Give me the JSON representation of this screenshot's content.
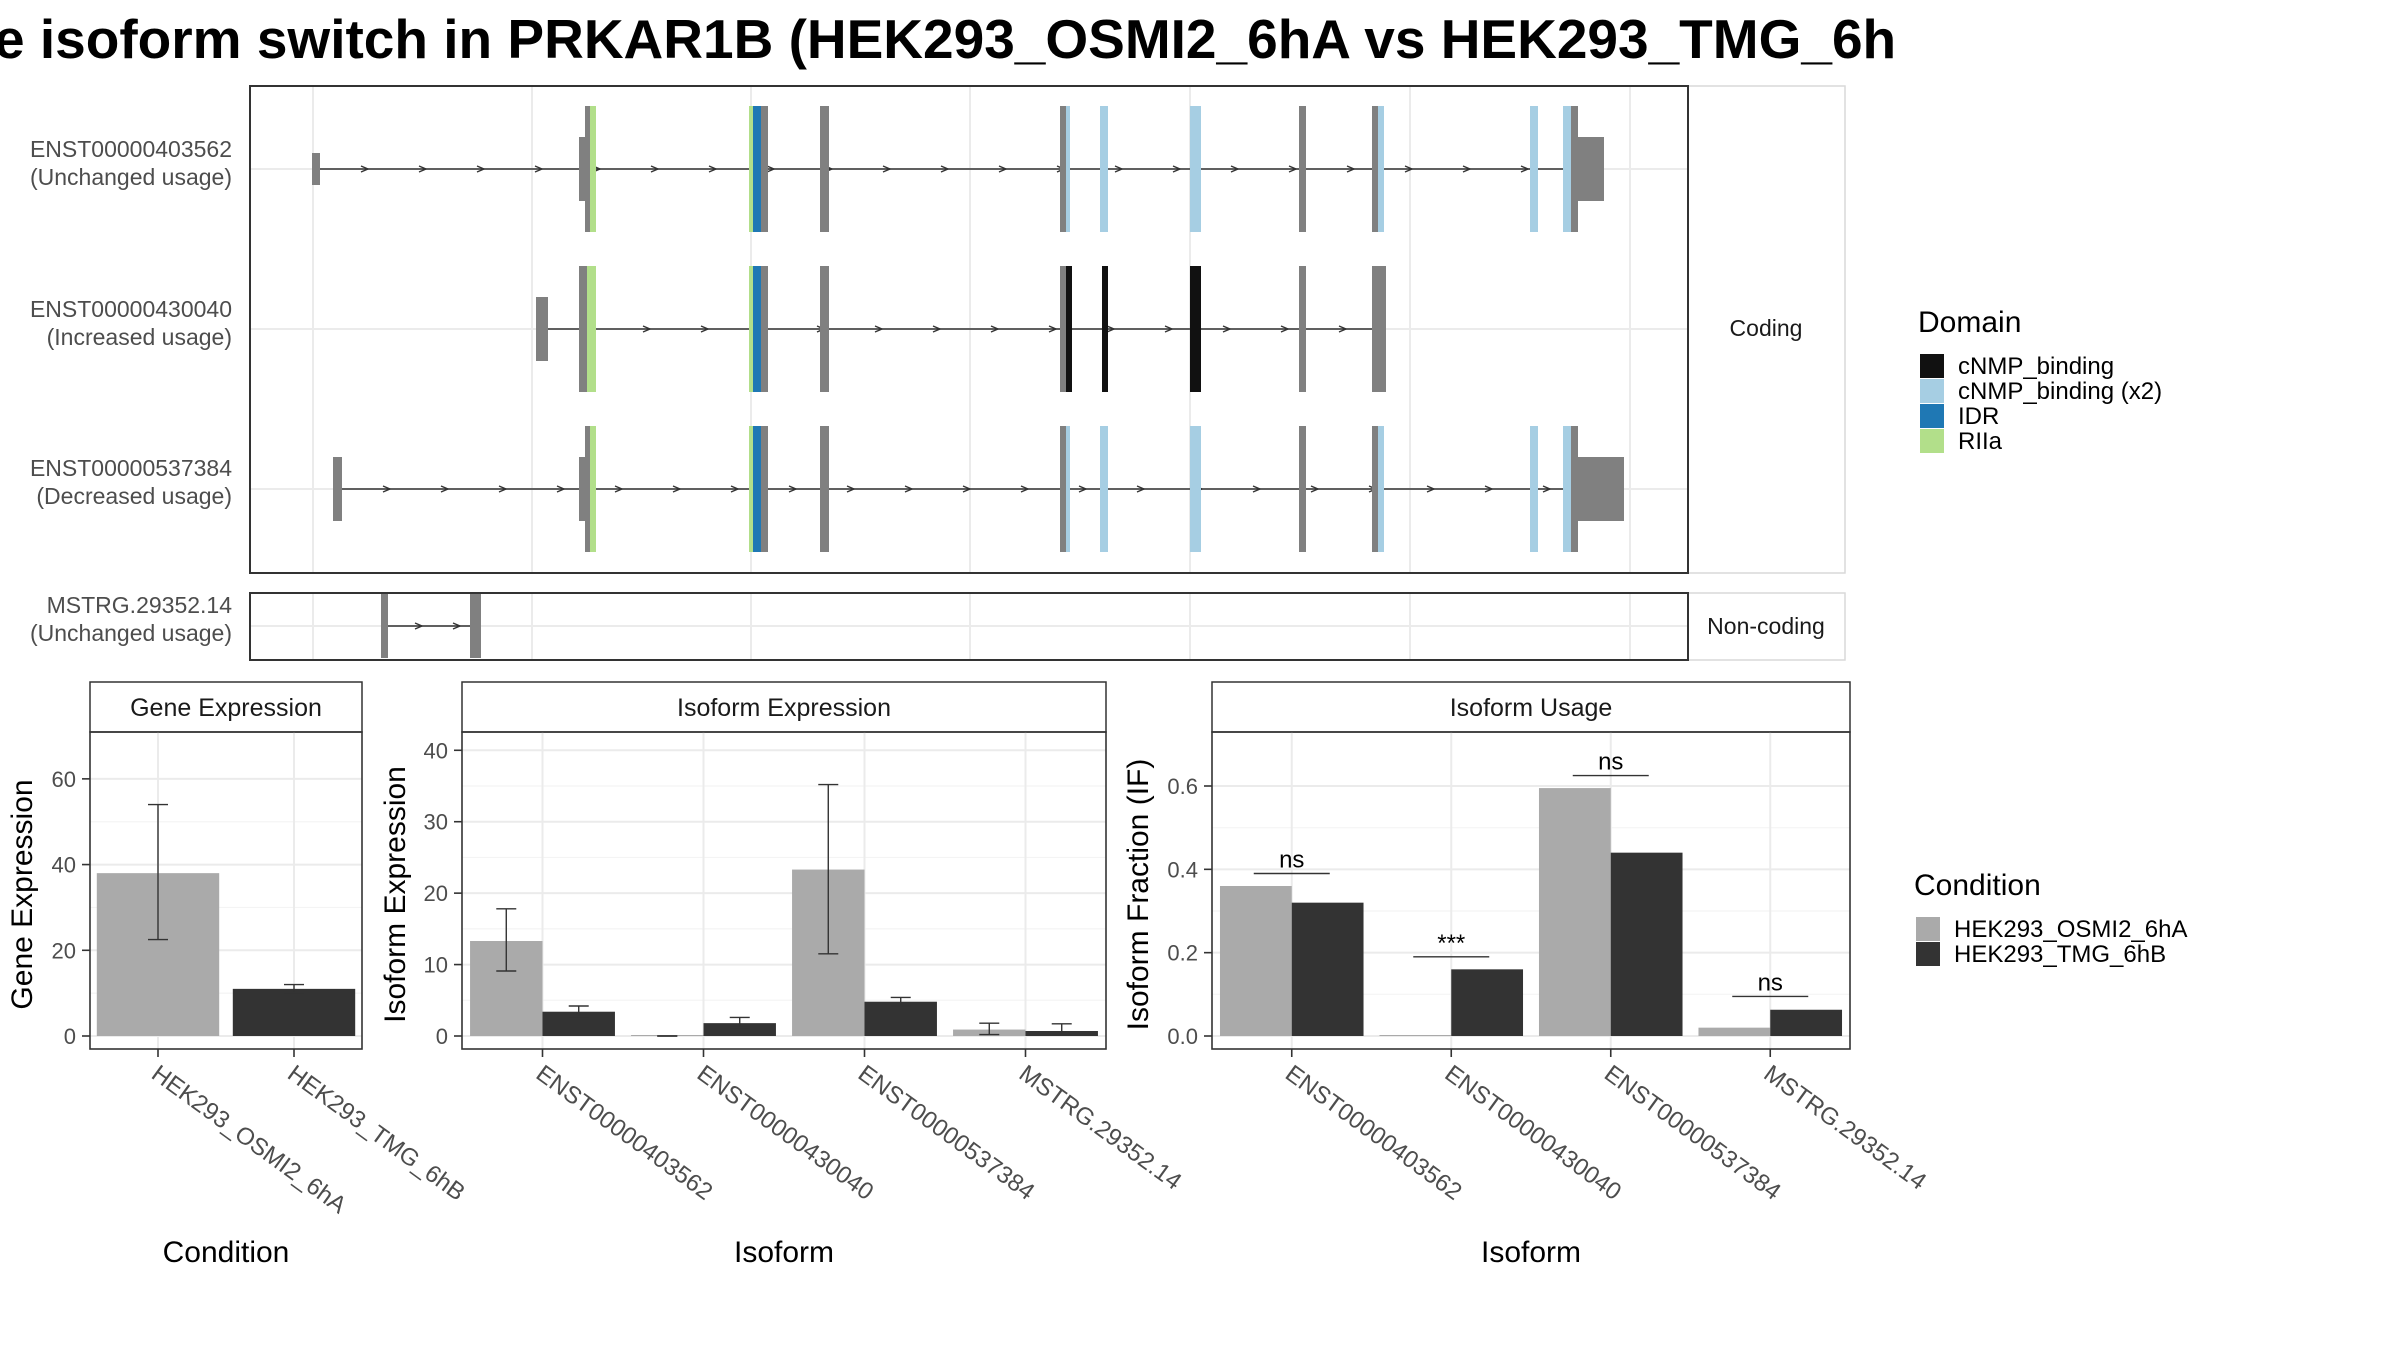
{
  "title": "e isoform switch in PRKAR1B (HEK293_OSMI2_6hA vs HEK293_TMG_6h",
  "colors": {
    "cond_a": "#aaaaaa",
    "cond_b": "#333333",
    "exon": "#808080",
    "domains": {
      "cNMP_binding": "#111111",
      "cNMP_binding (x2)": "#a6cee3",
      "IDR": "#1f78b4",
      "RIIa": "#b2df8a"
    }
  },
  "structure": {
    "facets": [
      "Coding",
      "Non-coding"
    ],
    "transcripts": [
      {
        "id": "ENST00000403562",
        "usage": "(Unchanged usage)",
        "facet": "Coding"
      },
      {
        "id": "ENST00000430040",
        "usage": "(Increased usage)",
        "facet": "Coding"
      },
      {
        "id": "ENST00000537384",
        "usage": "(Decreased usage)",
        "facet": "Coding"
      },
      {
        "id": "MSTRG.29352.14",
        "usage": "(Unchanged usage)",
        "facet": "Non-coding"
      }
    ]
  },
  "legend_domain": {
    "title": "Domain",
    "items": [
      {
        "label": "cNMP_binding",
        "key": "cNMP_binding"
      },
      {
        "label": "cNMP_binding (x2)",
        "key": "cNMP_binding (x2)"
      },
      {
        "label": "IDR",
        "key": "IDR"
      },
      {
        "label": "RIIa",
        "key": "RIIa"
      }
    ]
  },
  "legend_condition": {
    "title": "Condition",
    "items": [
      "HEK293_OSMI2_6hA",
      "HEK293_TMG_6hB"
    ]
  },
  "chart_data": [
    {
      "type": "bar",
      "title": "Gene Expression",
      "xlabel": "Condition",
      "ylabel": "Gene Expression",
      "ylim": [
        0,
        70
      ],
      "yticks": [
        0,
        20,
        40,
        60
      ],
      "categories": [
        "HEK293_OSMI2_6hA",
        "HEK293_TMG_6hB"
      ],
      "series": [
        {
          "name": "HEK293_OSMI2_6hA",
          "values": [
            38.0,
            null
          ],
          "err_low": [
            22.5,
            null
          ],
          "err_high": [
            54.0,
            null
          ]
        },
        {
          "name": "HEK293_TMG_6hB",
          "values": [
            null,
            11.0
          ],
          "err_low": [
            null,
            10.0
          ],
          "err_high": [
            null,
            12.0
          ]
        }
      ]
    },
    {
      "type": "bar",
      "title": "Isoform Expression",
      "xlabel": "Isoform",
      "ylabel": "Isoform Expression",
      "ylim": [
        0,
        42
      ],
      "yticks": [
        0,
        10,
        20,
        30,
        40
      ],
      "categories": [
        "ENST00000403562",
        "ENST00000430040",
        "ENST00000537384",
        "MSTRG.29352.14"
      ],
      "series": [
        {
          "name": "HEK293_OSMI2_6hA",
          "values": [
            13.3,
            0.0,
            23.3,
            0.9
          ],
          "err_low": [
            9.1,
            0.0,
            11.5,
            0.2
          ],
          "err_high": [
            17.8,
            0.0,
            35.2,
            1.8
          ]
        },
        {
          "name": "HEK293_TMG_6hB",
          "values": [
            3.4,
            1.8,
            4.8,
            0.7
          ],
          "err_low": [
            2.7,
            1.2,
            4.2,
            0.1
          ],
          "err_high": [
            4.2,
            2.6,
            5.4,
            1.7
          ]
        }
      ]
    },
    {
      "type": "bar",
      "title": "Isoform Usage",
      "xlabel": "Isoform",
      "ylabel": "Isoform Fraction (IF)",
      "ylim": [
        0,
        0.72
      ],
      "yticks": [
        0.0,
        0.2,
        0.4,
        0.6
      ],
      "ytick_labels": [
        "0.0",
        "0.2",
        "0.4",
        "0.6"
      ],
      "categories": [
        "ENST00000403562",
        "ENST00000430040",
        "ENST00000537384",
        "MSTRG.29352.14"
      ],
      "series": [
        {
          "name": "HEK293_OSMI2_6hA",
          "values": [
            0.36,
            0.0,
            0.595,
            0.02
          ]
        },
        {
          "name": "HEK293_TMG_6hB",
          "values": [
            0.32,
            0.16,
            0.44,
            0.063
          ]
        }
      ],
      "significance": [
        {
          "label": "ns",
          "y": 0.39
        },
        {
          "label": "***",
          "y": 0.19
        },
        {
          "label": "ns",
          "y": 0.625
        },
        {
          "label": "ns",
          "y": 0.095
        }
      ]
    }
  ]
}
